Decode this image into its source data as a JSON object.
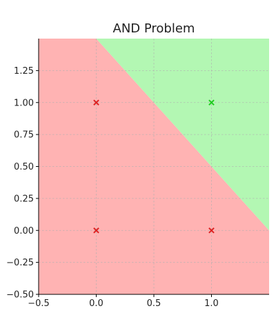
{
  "chart_data": {
    "type": "scatter",
    "title": "AND Problem",
    "xlabel": "",
    "ylabel": "",
    "xlim": [
      -0.5,
      1.5
    ],
    "ylim": [
      -0.5,
      1.5
    ],
    "x_ticks": [
      -0.5,
      0.0,
      0.5,
      1.0
    ],
    "x_tick_labels": [
      "−0.5",
      "0.0",
      "0.5",
      "1.0"
    ],
    "y_ticks": [
      -0.5,
      -0.25,
      0.0,
      0.25,
      0.5,
      0.75,
      1.0,
      1.25
    ],
    "y_tick_labels": [
      "−0.50",
      "−0.25",
      "0.00",
      "0.25",
      "0.50",
      "0.75",
      "1.00",
      "1.25"
    ],
    "grid": true,
    "decision_boundary": {
      "slope": -1,
      "intercept": 1.5
    },
    "regions": [
      {
        "side": "below",
        "color": "#ffb3b3"
      },
      {
        "side": "above",
        "color": "#b3f7b3"
      }
    ],
    "points": [
      {
        "x": 0,
        "y": 0,
        "marker": "x",
        "color": "#dd2222"
      },
      {
        "x": 0,
        "y": 1,
        "marker": "x",
        "color": "#dd2222"
      },
      {
        "x": 1,
        "y": 0,
        "marker": "x",
        "color": "#dd2222"
      },
      {
        "x": 1,
        "y": 1,
        "marker": "x",
        "color": "#22cc22"
      }
    ]
  }
}
